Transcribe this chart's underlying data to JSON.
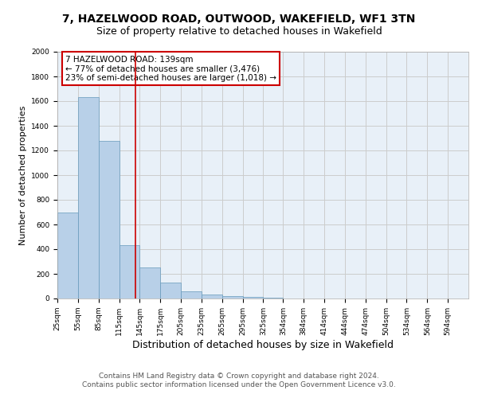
{
  "title1": "7, HAZELWOOD ROAD, OUTWOOD, WAKEFIELD, WF1 3TN",
  "title2": "Size of property relative to detached houses in Wakefield",
  "xlabel": "Distribution of detached houses by size in Wakefield",
  "ylabel": "Number of detached properties",
  "footer1": "Contains HM Land Registry data © Crown copyright and database right 2024.",
  "footer2": "Contains public sector information licensed under the Open Government Licence v3.0.",
  "annotation_line1": "7 HAZELWOOD ROAD: 139sqm",
  "annotation_line2": "← 77% of detached houses are smaller (3,476)",
  "annotation_line3": "23% of semi-detached houses are larger (1,018) →",
  "property_size": 139,
  "bin_edges": [
    25,
    55,
    85,
    115,
    145,
    175,
    205,
    235,
    265,
    295,
    325,
    354,
    384,
    414,
    444,
    474,
    504,
    534,
    564,
    594,
    624
  ],
  "bar_heights": [
    700,
    1630,
    1280,
    430,
    250,
    130,
    60,
    35,
    20,
    10,
    5,
    3,
    2,
    1,
    0,
    1,
    0,
    0,
    0,
    0
  ],
  "bar_color": "#b8d0e8",
  "bar_edge_color": "#6699bb",
  "vline_x": 139,
  "vline_color": "#cc0000",
  "ylim": [
    0,
    2000
  ],
  "yticks": [
    0,
    200,
    400,
    600,
    800,
    1000,
    1200,
    1400,
    1600,
    1800,
    2000
  ],
  "grid_color": "#cccccc",
  "bg_color": "#e8f0f8",
  "box_color": "#cc0000",
  "title1_fontsize": 10,
  "title2_fontsize": 9,
  "xlabel_fontsize": 9,
  "ylabel_fontsize": 8,
  "footer_fontsize": 6.5,
  "annot_fontsize": 7.5,
  "tick_fontsize": 6.5
}
